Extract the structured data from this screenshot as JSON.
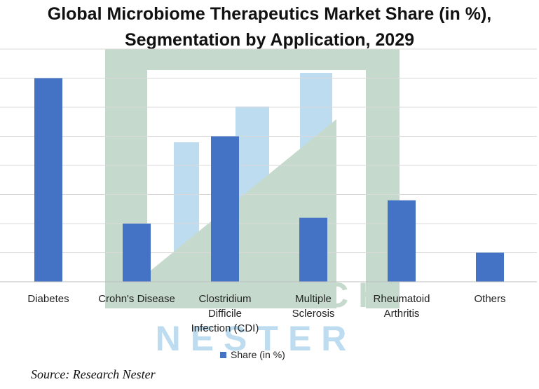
{
  "colors": {
    "bar": "#4472c4",
    "grid": "#d9d9d9",
    "axis": "#bfbfbf"
  },
  "watermark": {
    "text_line1": "RESEARCH",
    "text_line2": "NESTER"
  },
  "chart_data": {
    "type": "bar",
    "title_line1": "Global Microbiome Therapeutics Market Share (in %),",
    "title_line2": "Segmentation by Application, 2029",
    "categories": [
      [
        "Diabetes"
      ],
      [
        "Crohn's Disease"
      ],
      [
        "Clostridium",
        "Difficile",
        "Infection (CDI)"
      ],
      [
        "Multiple",
        "Sclerosis"
      ],
      [
        "Rheumatoid",
        "Arthritis"
      ],
      [
        "Others"
      ]
    ],
    "series": [
      {
        "name": "Share (in %)",
        "values": [
          35,
          10,
          25,
          11,
          14,
          5
        ]
      }
    ],
    "ylim": [
      0,
      40
    ],
    "ytick_step": 5,
    "grid": true,
    "legend_position": "bottom",
    "xlabel": "",
    "ylabel": ""
  },
  "source": "Source: Research Nester"
}
